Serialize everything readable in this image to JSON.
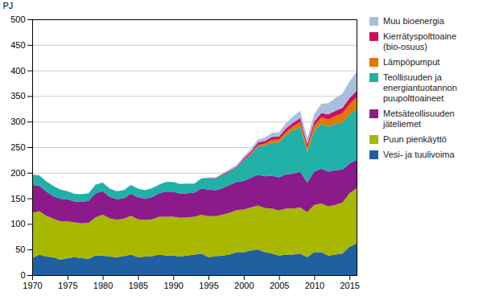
{
  "chart_data": {
    "type": "area",
    "stacked": true,
    "ylabel": "PJ",
    "xlim": [
      1970,
      2016
    ],
    "ylim": [
      0,
      500
    ],
    "xticks": [
      1970,
      1975,
      1980,
      1985,
      1990,
      1995,
      2000,
      2005,
      2010,
      2015
    ],
    "yticks": [
      0,
      50,
      100,
      150,
      200,
      250,
      300,
      350,
      400,
      450,
      500
    ],
    "grid": true,
    "legend": "right",
    "x": [
      1970,
      1971,
      1972,
      1973,
      1974,
      1975,
      1976,
      1977,
      1978,
      1979,
      1980,
      1981,
      1982,
      1983,
      1984,
      1985,
      1986,
      1987,
      1988,
      1989,
      1990,
      1991,
      1992,
      1993,
      1994,
      1995,
      1996,
      1997,
      1998,
      1999,
      2000,
      2001,
      2002,
      2003,
      2004,
      2005,
      2006,
      2007,
      2008,
      2009,
      2010,
      2011,
      2012,
      2013,
      2014,
      2015,
      2016
    ],
    "series": [
      {
        "name": "Vesi- ja tuulivoima",
        "color": "#2060a0",
        "values": [
          33,
          40,
          36,
          35,
          30,
          33,
          35,
          33,
          32,
          38,
          38,
          36,
          35,
          37,
          40,
          35,
          36,
          37,
          40,
          38,
          38,
          36,
          38,
          40,
          42,
          35,
          37,
          38,
          40,
          45,
          45,
          48,
          50,
          45,
          42,
          38,
          40,
          40,
          42,
          35,
          45,
          45,
          38,
          40,
          42,
          55,
          62
        ]
      },
      {
        "name": "Puun pienkäyttö",
        "color": "#a8b800",
        "values": [
          88,
          85,
          80,
          75,
          75,
          72,
          68,
          68,
          70,
          75,
          80,
          75,
          73,
          73,
          76,
          74,
          72,
          72,
          74,
          76,
          76,
          76,
          75,
          74,
          76,
          80,
          78,
          80,
          82,
          82,
          83,
          84,
          86,
          86,
          88,
          88,
          90,
          90,
          90,
          88,
          92,
          95,
          96,
          97,
          100,
          105,
          108
        ]
      },
      {
        "name": "Metsäteollisuuden\njäteliemet",
        "color": "#8b1a8b",
        "values": [
          55,
          50,
          47,
          44,
          44,
          43,
          41,
          42,
          43,
          47,
          46,
          42,
          40,
          40,
          43,
          43,
          41,
          43,
          46,
          49,
          49,
          47,
          47,
          47,
          51,
          52,
          51,
          52,
          54,
          55,
          56,
          58,
          60,
          62,
          64,
          65,
          67,
          68,
          70,
          58,
          65,
          68,
          68,
          68,
          64,
          58,
          55
        ]
      },
      {
        "name": "Teollisuuden ja\nenergiantuotannon\npuupolttoaineet",
        "color": "#20b0a8",
        "values": [
          20,
          20,
          20,
          20,
          18,
          16,
          15,
          15,
          15,
          17,
          17,
          16,
          16,
          16,
          17,
          17,
          17,
          18,
          17,
          19,
          19,
          19,
          19,
          18,
          20,
          22,
          23,
          25,
          26,
          28,
          40,
          45,
          55,
          60,
          65,
          68,
          76,
          85,
          88,
          60,
          80,
          88,
          88,
          90,
          92,
          96,
          100
        ]
      },
      {
        "name": "Lämpöpumput",
        "color": "#e07800",
        "values": [
          0,
          0,
          0,
          0,
          0,
          0,
          0,
          0,
          0,
          0,
          0,
          0,
          0,
          0,
          0,
          0,
          0,
          0,
          0,
          0,
          0,
          0,
          0,
          0,
          0,
          0,
          0,
          0,
          0,
          0,
          1,
          2,
          3,
          4,
          5,
          6,
          7,
          8,
          9,
          8,
          10,
          12,
          14,
          16,
          18,
          20,
          22
        ]
      },
      {
        "name": "Kierrätyspolttoaine\n(bio-osuus)",
        "color": "#cc1060",
        "values": [
          0,
          0,
          0,
          0,
          0,
          0,
          0,
          0,
          0,
          0,
          0,
          0,
          0,
          0,
          0,
          0,
          0,
          0,
          0,
          0,
          0,
          0,
          0,
          0,
          0,
          1,
          1,
          2,
          2,
          2,
          3,
          4,
          5,
          5,
          6,
          6,
          7,
          7,
          8,
          7,
          8,
          9,
          10,
          10,
          11,
          12,
          13
        ]
      },
      {
        "name": "Muu bioenergia",
        "color": "#a8bede",
        "values": [
          0,
          0,
          0,
          0,
          0,
          0,
          0,
          0,
          0,
          0,
          0,
          0,
          0,
          0,
          0,
          0,
          0,
          0,
          0,
          0,
          0,
          0,
          0,
          0,
          0,
          1,
          1,
          2,
          3,
          3,
          4,
          5,
          6,
          7,
          8,
          8,
          10,
          12,
          14,
          12,
          15,
          18,
          22,
          25,
          28,
          32,
          38
        ]
      }
    ]
  }
}
